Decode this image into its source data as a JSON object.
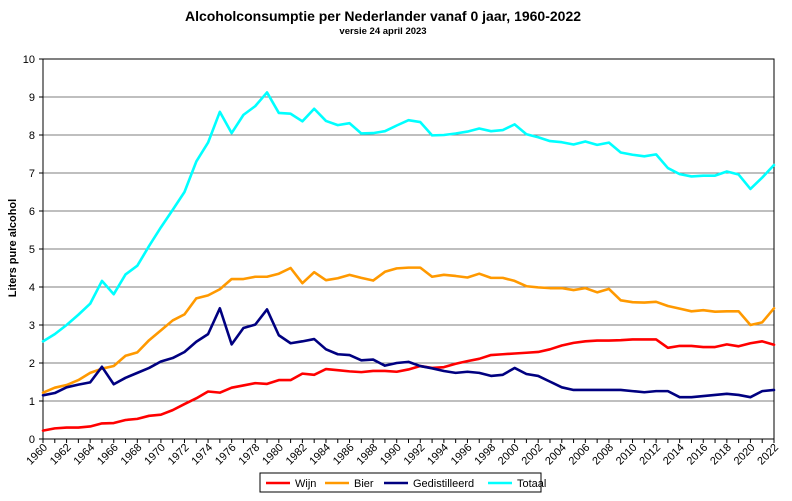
{
  "chart_data": {
    "type": "line",
    "title": "Alcoholconsumptie per Nederlander vanaf 0 jaar, 1960-2022",
    "subtitle": "versie 24 april 2023",
    "xlabel": "",
    "ylabel": "Liters pure alcohol",
    "ylim": [
      0,
      10
    ],
    "xlim": [
      1960,
      2022
    ],
    "x_tick_labels": [
      "1960",
      "1962",
      "1964",
      "1966",
      "1968",
      "1970",
      "1972",
      "1974",
      "1976",
      "1978",
      "1980",
      "1982",
      "1984",
      "1986",
      "1988",
      "1990",
      "1992",
      "1994",
      "1996",
      "1998",
      "2000",
      "2002",
      "2004",
      "2006",
      "2008",
      "2010",
      "2012",
      "2014",
      "2016",
      "2018",
      "2020",
      "2022"
    ],
    "y_tick_labels": [
      "0",
      "1",
      "2",
      "3",
      "4",
      "5",
      "6",
      "7",
      "8",
      "9",
      "10"
    ],
    "grid": "horizontal",
    "legend_position": "bottom",
    "x": [
      1960,
      1961,
      1962,
      1963,
      1964,
      1965,
      1966,
      1967,
      1968,
      1969,
      1970,
      1971,
      1972,
      1973,
      1974,
      1975,
      1976,
      1977,
      1978,
      1979,
      1980,
      1981,
      1982,
      1983,
      1984,
      1985,
      1986,
      1987,
      1988,
      1989,
      1990,
      1991,
      1992,
      1993,
      1994,
      1995,
      1996,
      1997,
      1998,
      1999,
      2000,
      2001,
      2002,
      2003,
      2004,
      2005,
      2006,
      2007,
      2008,
      2009,
      2010,
      2011,
      2012,
      2013,
      2014,
      2015,
      2016,
      2017,
      2018,
      2019,
      2020,
      2021,
      2022
    ],
    "series": [
      {
        "name": "Wijn",
        "color": "#ff0000",
        "values": [
          0.22,
          0.28,
          0.3,
          0.3,
          0.33,
          0.41,
          0.42,
          0.5,
          0.53,
          0.61,
          0.64,
          0.76,
          0.92,
          1.07,
          1.25,
          1.22,
          1.35,
          1.41,
          1.47,
          1.45,
          1.55,
          1.55,
          1.72,
          1.69,
          1.84,
          1.81,
          1.78,
          1.76,
          1.79,
          1.79,
          1.77,
          1.83,
          1.92,
          1.87,
          1.89,
          1.98,
          2.05,
          2.11,
          2.21,
          2.23,
          2.25,
          2.27,
          2.29,
          2.36,
          2.46,
          2.53,
          2.57,
          2.59,
          2.59,
          2.6,
          2.62,
          2.62,
          2.62,
          2.4,
          2.45,
          2.45,
          2.42,
          2.42,
          2.49,
          2.44,
          2.52,
          2.57,
          2.48
        ]
      },
      {
        "name": "Bier",
        "color": "#ff9900",
        "values": [
          1.22,
          1.35,
          1.42,
          1.55,
          1.74,
          1.85,
          1.92,
          2.19,
          2.28,
          2.6,
          2.86,
          3.12,
          3.28,
          3.7,
          3.78,
          3.94,
          4.21,
          4.21,
          4.27,
          4.27,
          4.35,
          4.5,
          4.1,
          4.39,
          4.18,
          4.23,
          4.32,
          4.24,
          4.17,
          4.4,
          4.49,
          4.51,
          4.51,
          4.27,
          4.32,
          4.29,
          4.25,
          4.35,
          4.24,
          4.24,
          4.16,
          4.02,
          3.99,
          3.97,
          3.97,
          3.92,
          3.97,
          3.86,
          3.95,
          3.65,
          3.6,
          3.59,
          3.61,
          3.5,
          3.43,
          3.36,
          3.39,
          3.35,
          3.36,
          3.36,
          3.0,
          3.07,
          3.44
        ]
      },
      {
        "name": "Gedistilleerd",
        "color": "#000080",
        "values": [
          1.15,
          1.21,
          1.36,
          1.43,
          1.49,
          1.9,
          1.44,
          1.61,
          1.74,
          1.87,
          2.04,
          2.13,
          2.29,
          2.56,
          2.76,
          3.44,
          2.49,
          2.92,
          3.01,
          3.41,
          2.73,
          2.52,
          2.57,
          2.63,
          2.36,
          2.23,
          2.21,
          2.07,
          2.09,
          1.93,
          2.0,
          2.03,
          1.92,
          1.86,
          1.79,
          1.74,
          1.77,
          1.74,
          1.66,
          1.69,
          1.87,
          1.71,
          1.66,
          1.51,
          1.36,
          1.29,
          1.29,
          1.29,
          1.29,
          1.29,
          1.26,
          1.23,
          1.26,
          1.26,
          1.1,
          1.1,
          1.13,
          1.16,
          1.19,
          1.16,
          1.1,
          1.26,
          1.29
        ]
      },
      {
        "name": "Totaal",
        "color": "#00ffff",
        "values": [
          2.57,
          2.76,
          3.0,
          3.27,
          3.56,
          4.16,
          3.81,
          4.33,
          4.56,
          5.08,
          5.57,
          6.03,
          6.5,
          7.3,
          7.8,
          8.61,
          8.05,
          8.53,
          8.76,
          9.12,
          8.58,
          8.56,
          8.36,
          8.69,
          8.37,
          8.26,
          8.31,
          8.04,
          8.05,
          8.1,
          8.25,
          8.39,
          8.34,
          7.99,
          8.0,
          8.04,
          8.09,
          8.17,
          8.1,
          8.13,
          8.28,
          8.02,
          7.94,
          7.84,
          7.81,
          7.75,
          7.83,
          7.74,
          7.8,
          7.54,
          7.48,
          7.44,
          7.49,
          7.13,
          6.97,
          6.91,
          6.93,
          6.93,
          7.04,
          6.96,
          6.58,
          6.88,
          7.21
        ]
      }
    ]
  }
}
